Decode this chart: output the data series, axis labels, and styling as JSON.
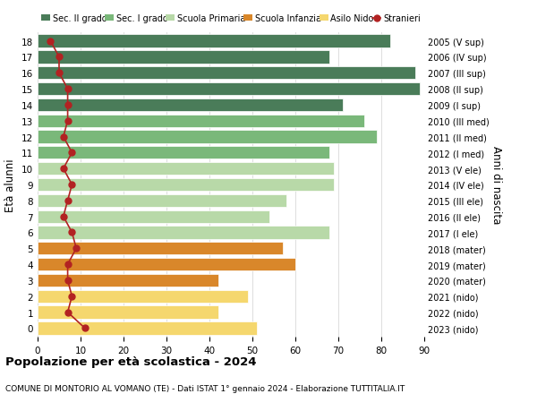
{
  "ages": [
    18,
    17,
    16,
    15,
    14,
    13,
    12,
    11,
    10,
    9,
    8,
    7,
    6,
    5,
    4,
    3,
    2,
    1,
    0
  ],
  "right_labels": [
    "2005 (V sup)",
    "2006 (IV sup)",
    "2007 (III sup)",
    "2008 (II sup)",
    "2009 (I sup)",
    "2010 (III med)",
    "2011 (II med)",
    "2012 (I med)",
    "2013 (V ele)",
    "2014 (IV ele)",
    "2015 (III ele)",
    "2016 (II ele)",
    "2017 (I ele)",
    "2018 (mater)",
    "2019 (mater)",
    "2020 (mater)",
    "2021 (nido)",
    "2022 (nido)",
    "2023 (nido)"
  ],
  "bar_values": [
    82,
    68,
    88,
    89,
    71,
    76,
    79,
    68,
    69,
    69,
    58,
    54,
    68,
    57,
    60,
    42,
    49,
    42,
    51
  ],
  "bar_colors": [
    "#4a7c59",
    "#4a7c59",
    "#4a7c59",
    "#4a7c59",
    "#4a7c59",
    "#7ab87a",
    "#7ab87a",
    "#7ab87a",
    "#b8d9a8",
    "#b8d9a8",
    "#b8d9a8",
    "#b8d9a8",
    "#b8d9a8",
    "#d9872a",
    "#d9872a",
    "#d9872a",
    "#f5d76e",
    "#f5d76e",
    "#f5d76e"
  ],
  "stranieri_values": [
    3,
    5,
    5,
    7,
    7,
    7,
    6,
    8,
    6,
    8,
    7,
    6,
    8,
    9,
    7,
    7,
    8,
    7,
    11
  ],
  "stranieri_color": "#b22222",
  "legend_labels": [
    "Sec. II grado",
    "Sec. I grado",
    "Scuola Primaria",
    "Scuola Infanzia",
    "Asilo Nido",
    "Stranieri"
  ],
  "legend_colors": [
    "#4a7c59",
    "#7ab87a",
    "#b8d9a8",
    "#d9872a",
    "#f5d76e",
    "#b22222"
  ],
  "ylabel_left": "Età alunni",
  "ylabel_right": "Anni di nascita",
  "title": "Popolazione per età scolastica - 2024",
  "subtitle": "COMUNE DI MONTORIO AL VOMANO (TE) - Dati ISTAT 1° gennaio 2024 - Elaborazione TUTTITALIA.IT",
  "xlim": [
    0,
    90
  ],
  "xticks": [
    0,
    10,
    20,
    30,
    40,
    50,
    60,
    70,
    80,
    90
  ],
  "bg_color": "#ffffff",
  "grid_color": "#dddddd",
  "bar_height": 0.8
}
